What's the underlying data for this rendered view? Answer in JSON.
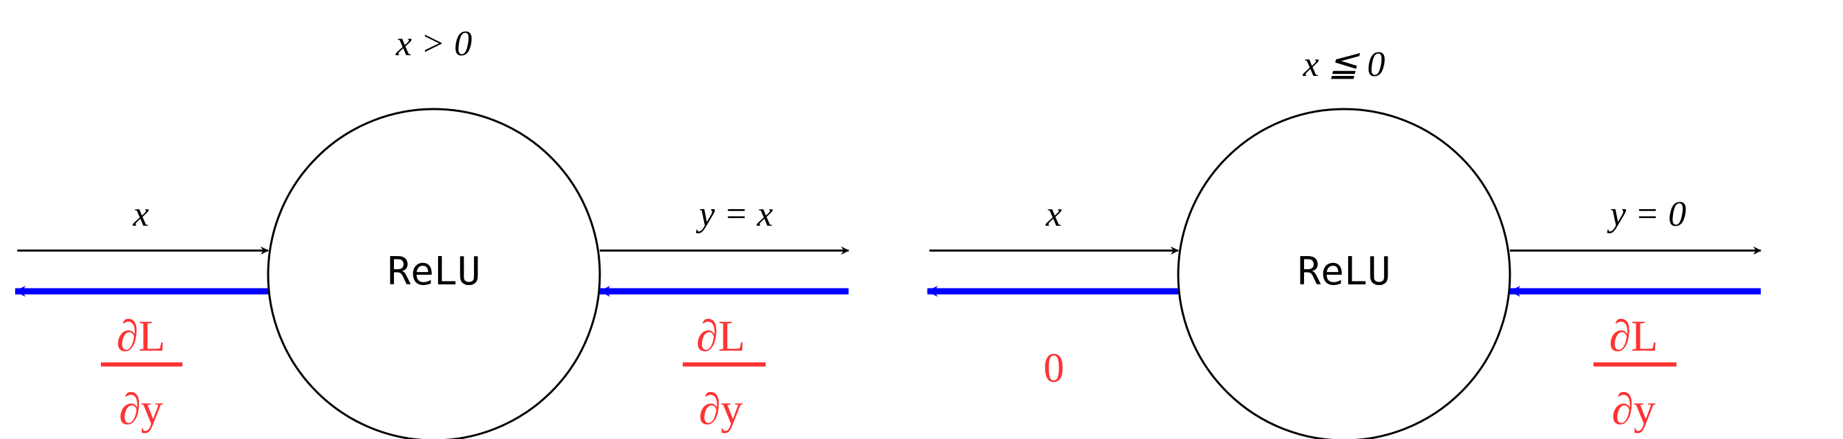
{
  "panel_left": {
    "condition": "x > 0",
    "node_label": "ReLU",
    "input_label": "x",
    "output_label": "y = x",
    "grad_in_num": "∂L",
    "grad_in_den": "∂y",
    "grad_out_num": "∂L",
    "grad_out_den": "∂y"
  },
  "panel_right": {
    "condition": "x ≦ 0",
    "node_label": "ReLU",
    "input_label": "x",
    "output_label": "y = 0",
    "grad_in_num": "∂L",
    "grad_in_den": "∂y",
    "grad_out_value": "0"
  },
  "colors": {
    "forward_arrow": "#000000",
    "backward_arrow": "#0000ff",
    "gradient_text": "#ff3333"
  }
}
